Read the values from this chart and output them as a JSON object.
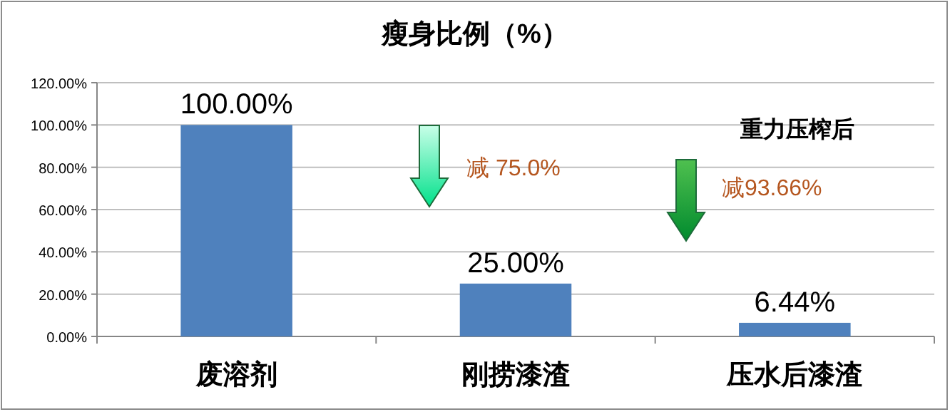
{
  "chart_data": {
    "type": "bar",
    "title": "瘦身比例（%）",
    "categories": [
      "废溶剂",
      "刚捞漆渣",
      "压水后漆渣"
    ],
    "values": [
      100,
      25,
      6.44
    ],
    "color": "#4f81bd",
    "value_labels": [
      "100.00%",
      "25.00%",
      "6.44%"
    ],
    "ylim": [
      0,
      120
    ],
    "yticks": [
      {
        "value": 0,
        "label": "0.00%"
      },
      {
        "value": 20,
        "label": "20.00%"
      },
      {
        "value": 40,
        "label": "40.00%"
      },
      {
        "value": 60,
        "label": "60.00%"
      },
      {
        "value": 80,
        "label": "80.00%"
      },
      {
        "value": 100,
        "label": "100.00%"
      },
      {
        "value": 120,
        "label": "120.00%"
      }
    ],
    "grid": "y",
    "annotations": [
      "减 75.0%",
      "重力压榨后",
      "减93.66%"
    ]
  }
}
